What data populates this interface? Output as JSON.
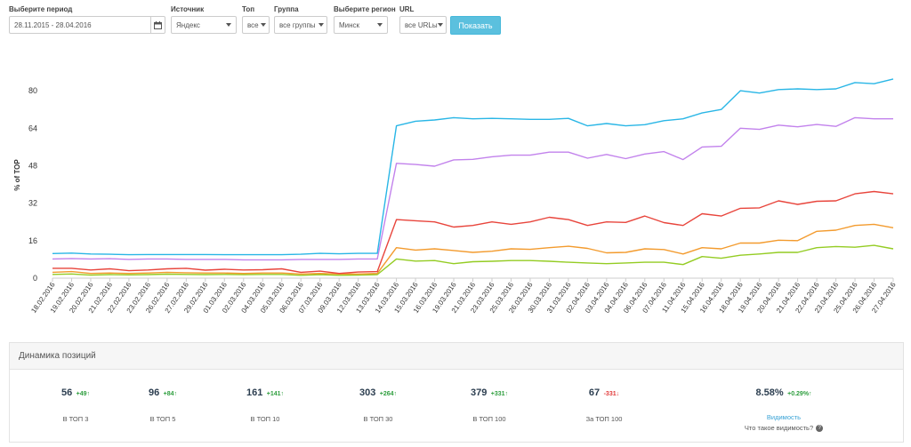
{
  "filters": {
    "period": {
      "label": "Выберите период",
      "value": "28.11.2015 - 28.04.2016"
    },
    "source": {
      "label": "Источник",
      "value": "Яндекс"
    },
    "top": {
      "label": "Топ",
      "value": "все"
    },
    "group": {
      "label": "Группа",
      "value": "все группы"
    },
    "region": {
      "label": "Выберите регион",
      "value": "Минск"
    },
    "url": {
      "label": "URL",
      "value": "все URLы"
    },
    "show_button": "Показать"
  },
  "chart_data": {
    "type": "line",
    "ylabel": "% of TOP",
    "ylim": [
      0,
      88
    ],
    "yticks": [
      0,
      16,
      32,
      48,
      64,
      80
    ],
    "grid": false,
    "categories": [
      "18.02.2016",
      "19.02.2016",
      "20.02.2016",
      "21.02.2016",
      "22.02.2016",
      "23.02.2016",
      "26.02.2016",
      "27.02.2016",
      "29.02.2016",
      "01.03.2016",
      "02.03.2016",
      "04.03.2016",
      "05.03.2016",
      "06.03.2016",
      "07.03.2016",
      "09.03.2016",
      "12.03.2016",
      "13.03.2016",
      "14.03.2016",
      "15.03.2016",
      "16.03.2016",
      "19.03.2016",
      "21.03.2016",
      "23.03.2016",
      "25.03.2016",
      "26.03.2016",
      "30.03.2016",
      "31.03.2016",
      "02.04.2016",
      "03.04.2016",
      "04.04.2016",
      "06.04.2016",
      "07.04.2016",
      "11.04.2016",
      "15.04.2016",
      "16.04.2016",
      "18.04.2016",
      "19.04.2016",
      "20.04.2016",
      "21.04.2016",
      "22.04.2016",
      "23.04.2016",
      "25.04.2016",
      "26.04.2016",
      "27.04.2016"
    ],
    "series": [
      {
        "color": "#29b6e6",
        "values": [
          10.5,
          10.7,
          10.3,
          10.2,
          10.0,
          10.1,
          10.1,
          10.1,
          10.1,
          10.0,
          10.0,
          10.0,
          10.0,
          10.2,
          10.6,
          10.4,
          10.6,
          10.6,
          65.0,
          67.0,
          67.5,
          68.5,
          68.0,
          68.2,
          68.0,
          67.8,
          67.8,
          68.2,
          65.0,
          66.0,
          65.0,
          65.5,
          67.2,
          68.0,
          70.5,
          72.0,
          80.0,
          79.0,
          80.5,
          80.8,
          80.5,
          80.8,
          83.5,
          83.0,
          85.0
        ]
      },
      {
        "color": "#c282ec",
        "values": [
          8.2,
          8.4,
          8.2,
          8.3,
          8.0,
          8.2,
          8.2,
          8.0,
          8.0,
          8.0,
          7.8,
          7.8,
          7.8,
          8.0,
          8.0,
          8.0,
          8.2,
          8.2,
          49.0,
          48.5,
          47.8,
          50.5,
          50.7,
          51.8,
          52.5,
          52.5,
          53.8,
          53.8,
          51.2,
          52.8,
          51.0,
          53.0,
          54.0,
          50.6,
          56.0,
          56.3,
          64.0,
          63.5,
          65.3,
          64.6,
          65.6,
          64.8,
          68.5,
          68.0,
          68.0
        ]
      },
      {
        "color": "#e8453c",
        "values": [
          4.2,
          4.2,
          3.5,
          4.0,
          3.2,
          3.5,
          4.0,
          4.2,
          3.4,
          3.8,
          3.5,
          3.6,
          4.0,
          2.5,
          3.0,
          2.0,
          2.6,
          2.8,
          25.0,
          24.5,
          24.0,
          21.8,
          22.5,
          24.0,
          23.0,
          24.0,
          26.0,
          25.0,
          22.5,
          24.0,
          23.8,
          26.5,
          23.7,
          22.5,
          27.5,
          26.5,
          29.8,
          30.0,
          33.0,
          31.5,
          32.8,
          33.0,
          36.0,
          37.0,
          36.0
        ]
      },
      {
        "color": "#f39b2e",
        "values": [
          2.5,
          2.8,
          2.0,
          2.2,
          2.0,
          2.2,
          2.5,
          2.3,
          2.2,
          2.2,
          2.0,
          2.2,
          2.2,
          1.8,
          2.0,
          1.8,
          1.8,
          2.0,
          13.0,
          12.0,
          12.5,
          11.8,
          11.0,
          11.5,
          12.5,
          12.3,
          13.0,
          13.6,
          12.7,
          10.8,
          11.0,
          12.5,
          12.2,
          10.3,
          13.0,
          12.5,
          15.0,
          15.0,
          16.2,
          16.0,
          20.0,
          20.5,
          22.5,
          23.0,
          21.5
        ]
      },
      {
        "color": "#94cc23",
        "values": [
          1.6,
          1.8,
          1.3,
          1.5,
          1.4,
          1.5,
          1.7,
          1.6,
          1.5,
          1.6,
          1.5,
          1.6,
          1.6,
          1.2,
          1.5,
          1.2,
          1.3,
          1.5,
          8.2,
          7.3,
          7.5,
          6.2,
          7.0,
          7.2,
          7.5,
          7.5,
          7.2,
          6.8,
          6.5,
          6.2,
          6.5,
          6.8,
          6.8,
          5.8,
          9.2,
          8.5,
          9.8,
          10.3,
          11.0,
          11.0,
          13.0,
          13.5,
          13.2,
          14.0,
          12.5
        ]
      }
    ]
  },
  "dynamics": {
    "title": "Динамика позиций",
    "stats": [
      {
        "value": "56",
        "delta": "+49",
        "arrow": "↑",
        "dir": "up",
        "label": "В ТОП 3"
      },
      {
        "value": "96",
        "delta": "+84",
        "arrow": "↑",
        "dir": "up",
        "label": "В ТОП 5"
      },
      {
        "value": "161",
        "delta": "+141",
        "arrow": "↑",
        "dir": "up",
        "label": "В ТОП 10"
      },
      {
        "value": "303",
        "delta": "+264",
        "arrow": "↑",
        "dir": "up",
        "label": "В ТОП 30"
      },
      {
        "value": "379",
        "delta": "+331",
        "arrow": "↑",
        "dir": "up",
        "label": "В ТОП 100"
      },
      {
        "value": "67",
        "delta": "-331",
        "arrow": "↓",
        "dir": "down",
        "label": "За ТОП 100"
      }
    ],
    "visibility": {
      "value": "8.58%",
      "delta": "+0.29%",
      "arrow": "↑",
      "link": "Видимость",
      "question": "Что такое видимость?",
      "help_icon": "?"
    }
  }
}
